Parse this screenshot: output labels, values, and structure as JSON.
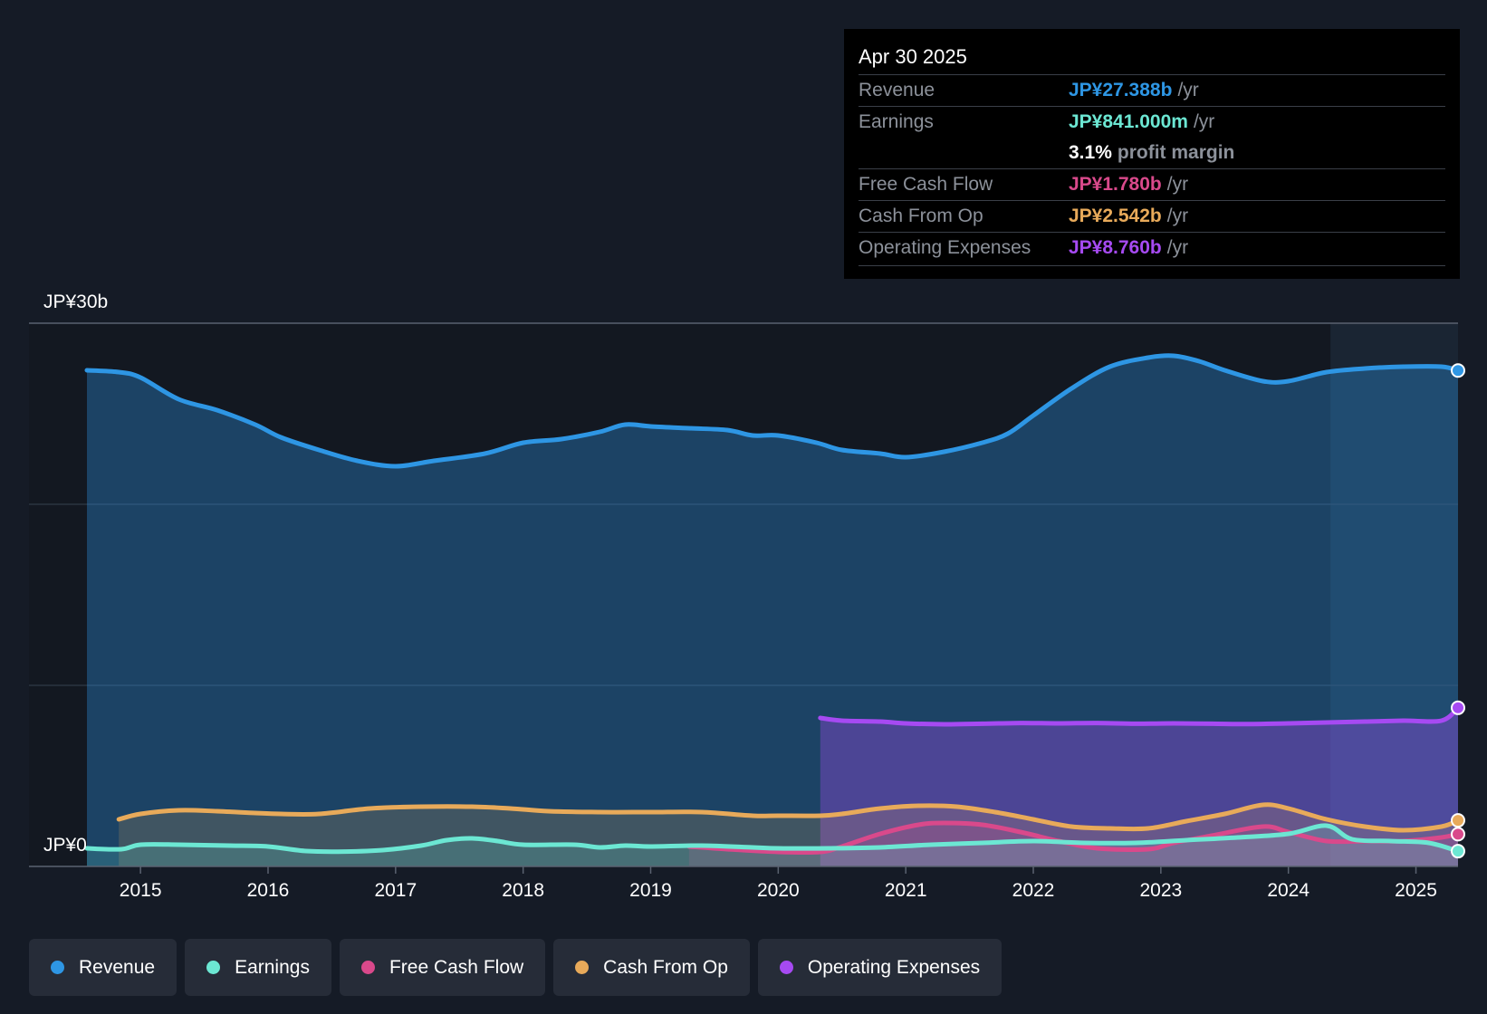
{
  "tooltip": {
    "date": "Apr 30 2025",
    "rows": [
      {
        "label": "Revenue",
        "value": "JP¥27.388b",
        "unit": "/yr",
        "color": "#2e96e4"
      },
      {
        "label": "Earnings",
        "value": "JP¥841.000m",
        "unit": "/yr",
        "color": "#6ce7d3"
      },
      {
        "label": "",
        "value": "3.1%",
        "unit": "profit margin",
        "color": "#ffffff"
      },
      {
        "label": "Free Cash Flow",
        "value": "JP¥1.780b",
        "unit": "/yr",
        "color": "#d9498b"
      },
      {
        "label": "Cash From Op",
        "value": "JP¥2.542b",
        "unit": "/yr",
        "color": "#e8aa5a"
      },
      {
        "label": "Operating Expenses",
        "value": "JP¥8.760b",
        "unit": "/yr",
        "color": "#a64af2"
      }
    ]
  },
  "chart_data": {
    "type": "area",
    "y_top_label": "JP¥30b",
    "y_bottom_label": "JP¥0",
    "ylim": [
      0,
      30
    ],
    "xlim": [
      2014.58,
      2025.33
    ],
    "x_ticks": [
      "2015",
      "2016",
      "2017",
      "2018",
      "2019",
      "2020",
      "2021",
      "2022",
      "2023",
      "2024",
      "2025"
    ],
    "series": [
      {
        "name": "Revenue",
        "color": "#2e96e4",
        "x": [
          2014.58,
          2014.83,
          2015.0,
          2015.3,
          2015.6,
          2015.9,
          2016.1,
          2016.4,
          2016.7,
          2017.0,
          2017.3,
          2017.7,
          2018.0,
          2018.3,
          2018.6,
          2018.8,
          2019.0,
          2019.3,
          2019.6,
          2019.8,
          2020.0,
          2020.3,
          2020.5,
          2020.8,
          2021.0,
          2021.3,
          2021.6,
          2021.8,
          2022.0,
          2022.3,
          2022.6,
          2022.9,
          2023.1,
          2023.3,
          2023.5,
          2023.8,
          2024.0,
          2024.3,
          2024.6,
          2024.9,
          2025.2,
          2025.33
        ],
        "values": [
          27.4,
          27.3,
          27.0,
          25.8,
          25.2,
          24.4,
          23.7,
          23.0,
          22.4,
          22.1,
          22.4,
          22.8,
          23.4,
          23.6,
          24.0,
          24.4,
          24.3,
          24.2,
          24.1,
          23.8,
          23.8,
          23.4,
          23.0,
          22.8,
          22.6,
          22.9,
          23.4,
          23.9,
          24.9,
          26.4,
          27.6,
          28.1,
          28.2,
          27.9,
          27.4,
          26.8,
          26.8,
          27.3,
          27.5,
          27.6,
          27.6,
          27.388
        ]
      },
      {
        "name": "Earnings",
        "color": "#6ce7d3",
        "x": [
          2014.58,
          2014.85,
          2015.0,
          2015.3,
          2015.7,
          2016.0,
          2016.3,
          2016.6,
          2016.9,
          2017.2,
          2017.4,
          2017.6,
          2017.8,
          2018.0,
          2018.4,
          2018.6,
          2018.8,
          2019.0,
          2019.4,
          2019.8,
          2020.0,
          2020.4,
          2020.8,
          2021.2,
          2021.6,
          2022.0,
          2022.4,
          2022.8,
          2023.2,
          2023.6,
          2024.0,
          2024.3,
          2024.5,
          2024.8,
          2025.1,
          2025.33
        ],
        "values": [
          1.0,
          0.95,
          1.2,
          1.2,
          1.15,
          1.1,
          0.85,
          0.82,
          0.9,
          1.15,
          1.45,
          1.55,
          1.4,
          1.2,
          1.2,
          1.05,
          1.15,
          1.1,
          1.15,
          1.05,
          1.0,
          1.0,
          1.05,
          1.2,
          1.3,
          1.4,
          1.3,
          1.3,
          1.45,
          1.6,
          1.8,
          2.25,
          1.5,
          1.4,
          1.3,
          0.841
        ]
      },
      {
        "name": "Free Cash Flow",
        "color": "#d9498b",
        "x": [
          2019.3,
          2019.6,
          2020.0,
          2020.33,
          2020.5,
          2020.8,
          2021.1,
          2021.3,
          2021.6,
          2021.9,
          2022.2,
          2022.5,
          2022.9,
          2023.1,
          2023.4,
          2023.8,
          2024.0,
          2024.3,
          2024.6,
          2024.9,
          2025.2,
          2025.33
        ],
        "values": [
          1.1,
          0.95,
          0.8,
          0.8,
          1.1,
          1.8,
          2.3,
          2.4,
          2.3,
          1.9,
          1.4,
          1.0,
          0.95,
          1.3,
          1.7,
          2.2,
          1.9,
          1.4,
          1.4,
          1.4,
          1.6,
          1.78
        ]
      },
      {
        "name": "Cash From Op",
        "color": "#e8aa5a",
        "x": [
          2014.83,
          2015.0,
          2015.3,
          2015.6,
          2015.9,
          2016.1,
          2016.4,
          2016.8,
          2017.2,
          2017.6,
          2017.9,
          2018.2,
          2018.6,
          2019.0,
          2019.4,
          2019.8,
          2020.0,
          2020.33,
          2020.5,
          2020.8,
          2021.1,
          2021.4,
          2021.7,
          2022.0,
          2022.3,
          2022.6,
          2022.9,
          2023.2,
          2023.5,
          2023.8,
          2024.0,
          2024.3,
          2024.6,
          2024.9,
          2025.2,
          2025.33
        ],
        "values": [
          2.6,
          2.9,
          3.1,
          3.05,
          2.95,
          2.9,
          2.9,
          3.2,
          3.3,
          3.3,
          3.2,
          3.05,
          3.0,
          3.0,
          3.0,
          2.8,
          2.8,
          2.8,
          2.9,
          3.2,
          3.35,
          3.3,
          3.0,
          2.6,
          2.2,
          2.1,
          2.1,
          2.5,
          2.9,
          3.4,
          3.2,
          2.6,
          2.2,
          2.0,
          2.2,
          2.542
        ]
      },
      {
        "name": "Operating Expenses",
        "color": "#a64af2",
        "x": [
          2020.33,
          2020.5,
          2020.8,
          2021.0,
          2021.3,
          2021.6,
          2021.9,
          2022.2,
          2022.5,
          2022.8,
          2023.1,
          2023.4,
          2023.7,
          2024.0,
          2024.3,
          2024.6,
          2024.9,
          2025.2,
          2025.33
        ],
        "values": [
          8.2,
          8.05,
          8.0,
          7.9,
          7.85,
          7.88,
          7.92,
          7.9,
          7.92,
          7.88,
          7.9,
          7.88,
          7.86,
          7.9,
          7.95,
          8.0,
          8.05,
          8.05,
          8.76
        ]
      }
    ],
    "legend": [
      "Revenue",
      "Earnings",
      "Free Cash Flow",
      "Cash From Op",
      "Operating Expenses"
    ]
  },
  "colors": {
    "background": "#151b26",
    "plot_bg": "#131821",
    "highlight_bg": "#1a2533",
    "grid": "#2b3440"
  }
}
